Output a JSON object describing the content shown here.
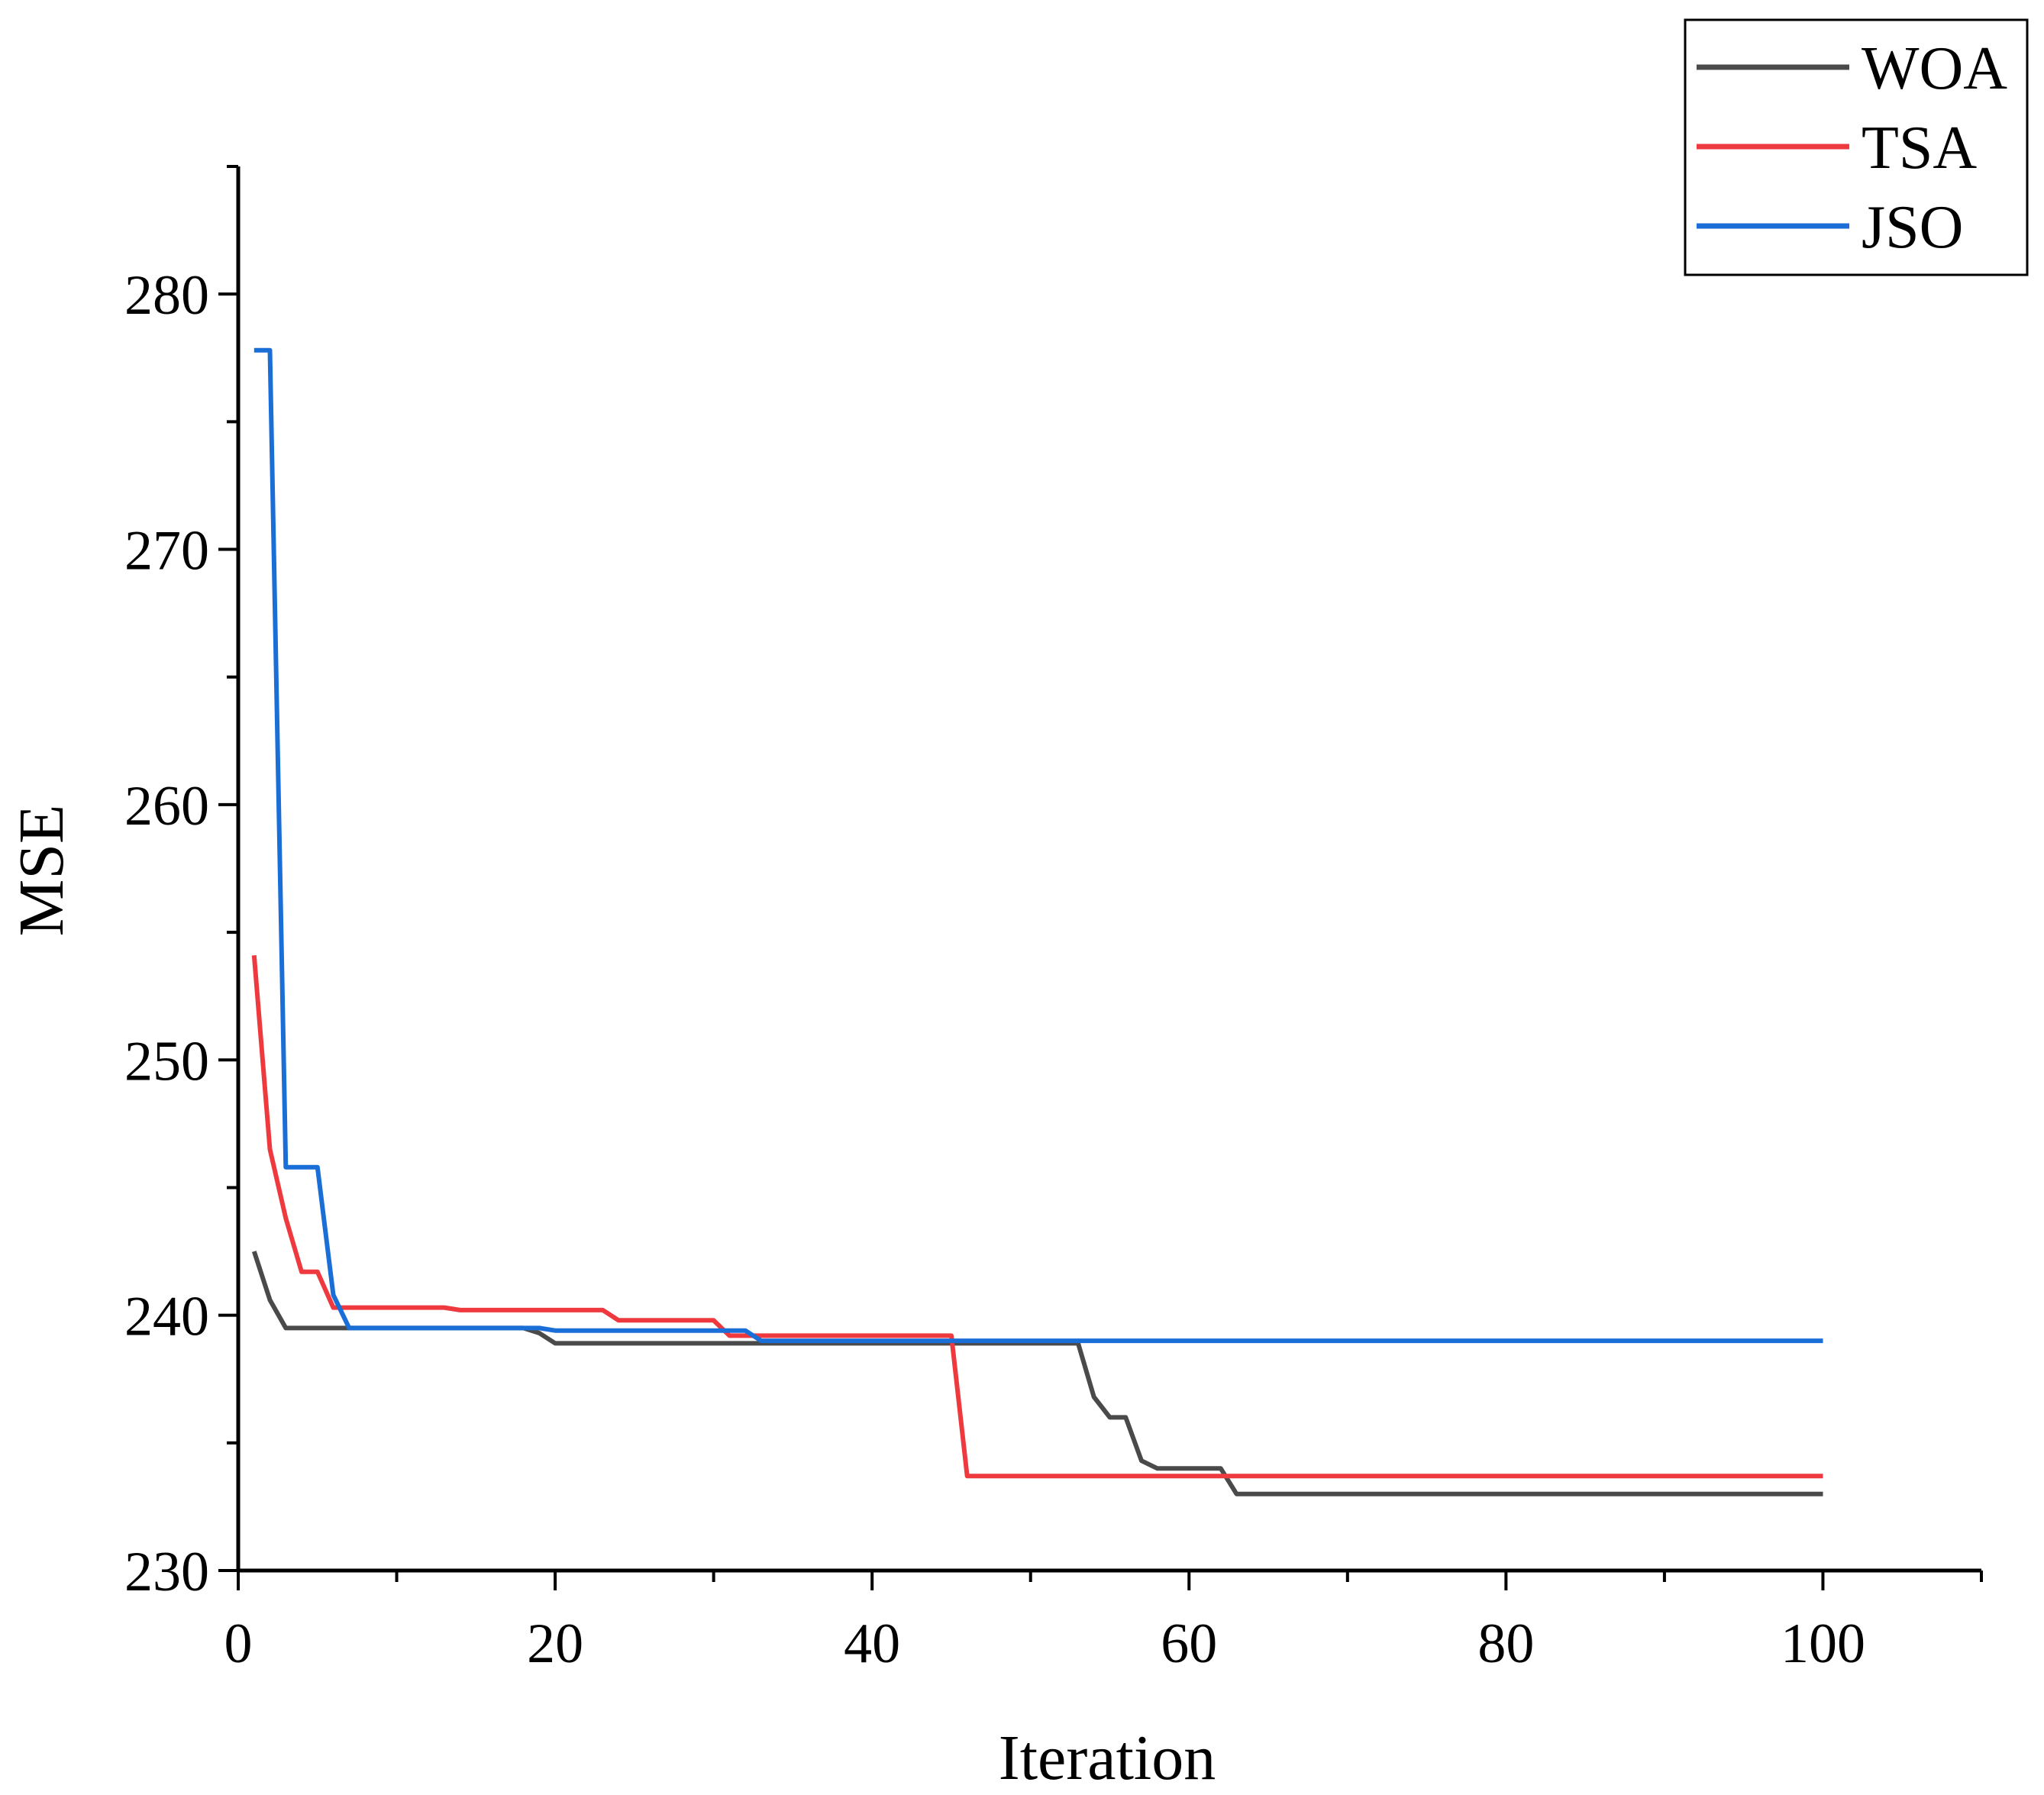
{
  "chart_data": {
    "type": "line",
    "title": "",
    "xlabel": "Iteration",
    "ylabel": "MSE",
    "xlim": [
      0,
      110
    ],
    "ylim": [
      230,
      285
    ],
    "xticks": [
      0,
      20,
      40,
      60,
      80,
      100
    ],
    "yticks": [
      230,
      240,
      250,
      260,
      270,
      280
    ],
    "legend_position": "top-right",
    "grid": false,
    "series": [
      {
        "name": "WOA",
        "color": "#4a4a4a",
        "points": [
          [
            1,
            242.5
          ],
          [
            2,
            240.6
          ],
          [
            3,
            239.5
          ],
          [
            18,
            239.5
          ],
          [
            19,
            239.3
          ],
          [
            20,
            238.9
          ],
          [
            53,
            238.9
          ],
          [
            54,
            236.8
          ],
          [
            55,
            236.0
          ],
          [
            56,
            236.0
          ],
          [
            57,
            234.3
          ],
          [
            58,
            234.0
          ],
          [
            62,
            234.0
          ],
          [
            63,
            233.0
          ],
          [
            100,
            233.0
          ]
        ]
      },
      {
        "name": "TSA",
        "color": "#ee3a3f",
        "points": [
          [
            1,
            254.1
          ],
          [
            2,
            246.5
          ],
          [
            3,
            243.8
          ],
          [
            4,
            241.7
          ],
          [
            5,
            241.7
          ],
          [
            6,
            240.3
          ],
          [
            13,
            240.3
          ],
          [
            14,
            240.2
          ],
          [
            23,
            240.2
          ],
          [
            24,
            239.8
          ],
          [
            30,
            239.8
          ],
          [
            31,
            239.2
          ],
          [
            45,
            239.2
          ],
          [
            46,
            233.7
          ],
          [
            100,
            233.7
          ]
        ]
      },
      {
        "name": "JSO",
        "color": "#1a6ed8",
        "points": [
          [
            1,
            277.8
          ],
          [
            2,
            277.8
          ],
          [
            3,
            245.8
          ],
          [
            5,
            245.8
          ],
          [
            6,
            240.8
          ],
          [
            7,
            239.5
          ],
          [
            19,
            239.5
          ],
          [
            20,
            239.4
          ],
          [
            32,
            239.4
          ],
          [
            33,
            239.0
          ],
          [
            100,
            239.0
          ]
        ]
      }
    ]
  }
}
